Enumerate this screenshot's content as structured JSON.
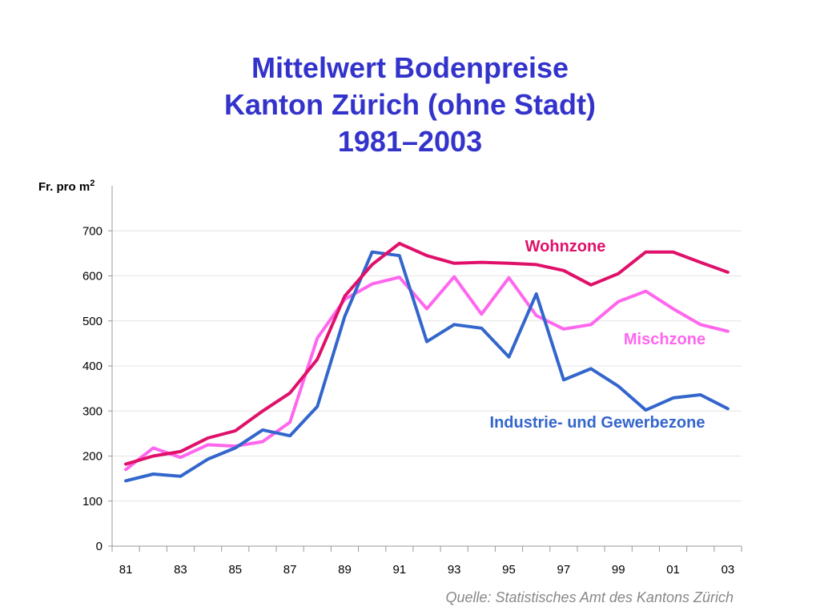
{
  "title_lines": [
    "Mittelwert Bodenpreise",
    "Kanton Zürich (ohne Stadt)",
    "1981–2003"
  ],
  "source": "Quelle: Statistisches Amt des Kantons Zürich",
  "chart_data": {
    "type": "line",
    "title": "Mittelwert Bodenpreise Kanton Zürich (ohne Stadt) 1981–2003",
    "ylabel": "Fr. pro m",
    "ylabel_superscript": "2",
    "xlabel": "",
    "x": [
      1981,
      1982,
      1983,
      1984,
      1985,
      1986,
      1987,
      1988,
      1989,
      1990,
      1991,
      1992,
      1993,
      1994,
      1995,
      1996,
      1997,
      1998,
      1999,
      2000,
      2001,
      2002,
      2003
    ],
    "xticks": [
      "81",
      "83",
      "85",
      "87",
      "89",
      "91",
      "93",
      "95",
      "97",
      "99",
      "01",
      "03"
    ],
    "yticks": [
      0,
      100,
      200,
      300,
      400,
      500,
      600,
      700
    ],
    "ylim": [
      0,
      800
    ],
    "grid": true,
    "legend": "inline labels",
    "series": [
      {
        "name": "Wohnzone",
        "color": "#e0106a",
        "values": [
          182,
          200,
          210,
          240,
          256,
          300,
          340,
          415,
          555,
          625,
          672,
          645,
          628,
          630,
          628,
          625,
          612,
          580,
          605,
          653,
          653,
          630,
          608
        ]
      },
      {
        "name": "Mischzone",
        "color": "#ff66ee",
        "values": [
          170,
          218,
          197,
          225,
          222,
          232,
          275,
          462,
          548,
          582,
          597,
          527,
          598,
          515,
          596,
          512,
          482,
          492,
          543,
          566,
          527,
          492,
          477
        ]
      },
      {
        "name": "Industrie- und Gewerbezone",
        "color": "#3366cc",
        "values": [
          145,
          160,
          155,
          193,
          218,
          258,
          245,
          310,
          510,
          653,
          645,
          454,
          492,
          484,
          420,
          560,
          369,
          394,
          355,
          302,
          329,
          336,
          305
        ]
      }
    ]
  }
}
